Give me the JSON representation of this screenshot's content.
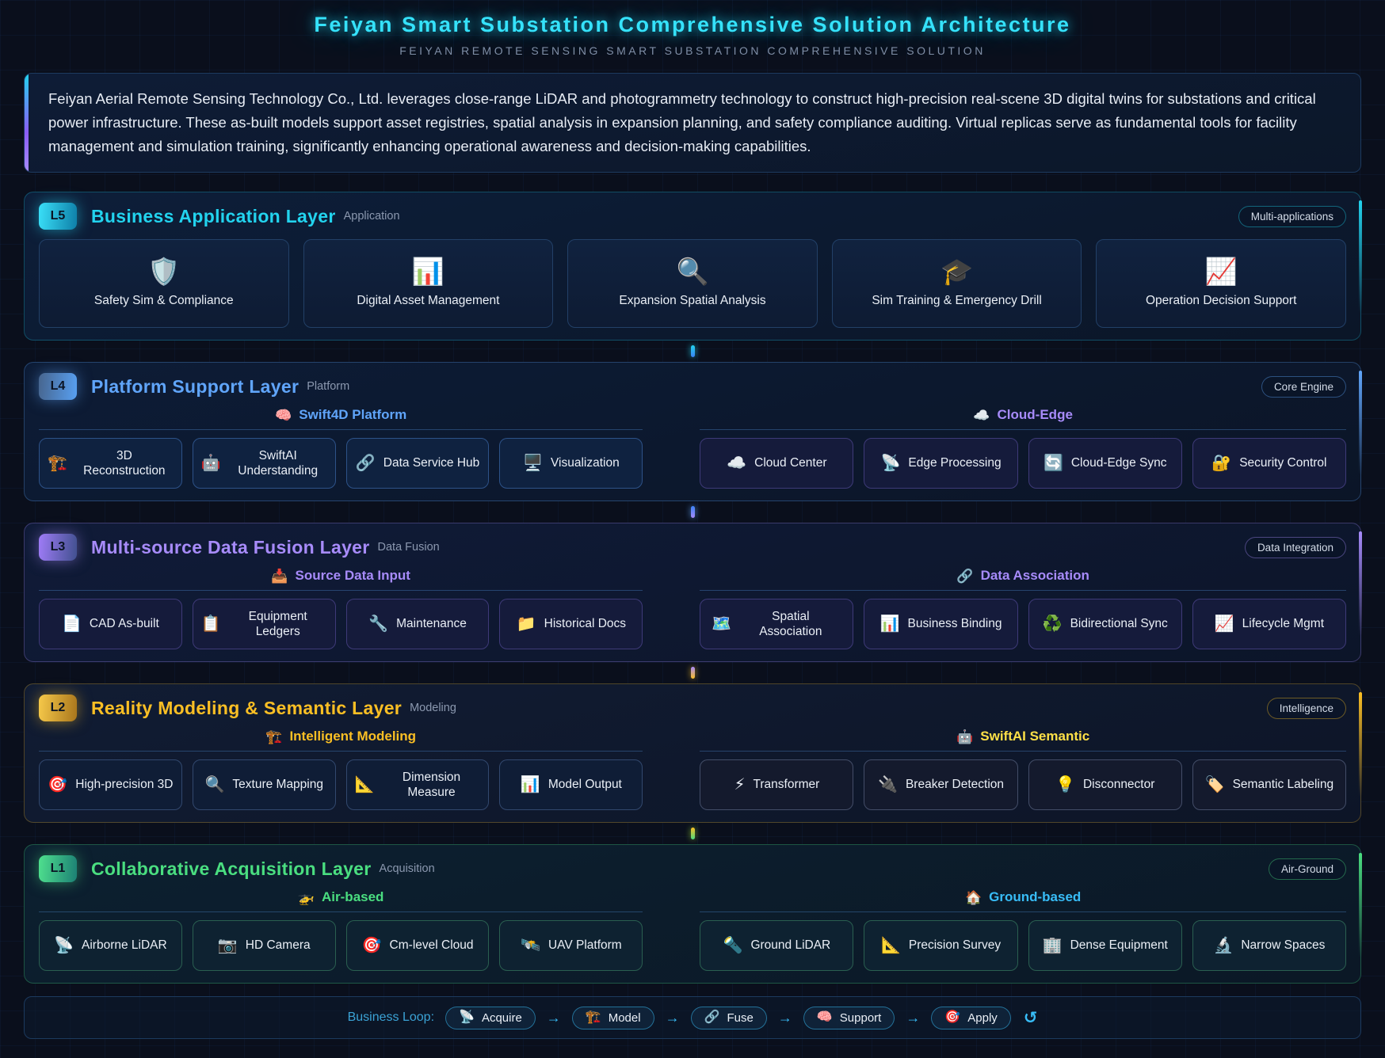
{
  "header": {
    "title": "Feiyan Smart Substation Comprehensive Solution Architecture",
    "subtitle": "FEIYAN REMOTE SENSING SMART SUBSTATION COMPREHENSIVE SOLUTION"
  },
  "intro": {
    "text": "Feiyan Aerial Remote Sensing Technology Co., Ltd. leverages close-range LiDAR and photogrammetry technology to construct high-precision real-scene 3D digital twins for substations and critical power infrastructure. These as-built models support asset registries, spatial analysis in expansion planning, and safety compliance auditing. Virtual replicas serve as fundamental tools for facility management and simulation training, significantly enhancing operational awareness and decision-making capabilities."
  },
  "colors": {
    "l5_accent": "#22d3ee",
    "l4_accent": "#60a5fa",
    "l3_accent": "#a78bfa",
    "l2_accent": "#fbbf24",
    "l1_accent": "#4ade80",
    "loop_accent": "#38bdf8"
  },
  "layers": [
    {
      "badge": "L5",
      "title": "Business Application Layer",
      "tag": "Application",
      "pill": "Multi-applications",
      "cards": [
        {
          "icon": "🛡️",
          "icon_name": "shield-icon",
          "label": "Safety Sim & Compliance"
        },
        {
          "icon": "📊",
          "icon_name": "bar-chart-icon",
          "label": "Digital Asset Management"
        },
        {
          "icon": "🔍",
          "icon_name": "magnifier-icon",
          "label": "Expansion Spatial Analysis"
        },
        {
          "icon": "🎓",
          "icon_name": "graduation-cap-icon",
          "label": "Sim Training & Emergency Drill"
        },
        {
          "icon": "📈",
          "icon_name": "chart-increasing-icon",
          "label": "Operation Decision Support"
        }
      ]
    },
    {
      "badge": "L4",
      "title": "Platform Support Layer",
      "tag": "Platform",
      "pill": "Core Engine",
      "groups": [
        {
          "icon": "🧠",
          "icon_name": "brain-icon",
          "name": "Swift4D Platform",
          "items": [
            {
              "icon": "🏗️",
              "icon_name": "crane-icon",
              "label": "3D Reconstruction"
            },
            {
              "icon": "🤖",
              "icon_name": "robot-icon",
              "label": "SwiftAI Understanding"
            },
            {
              "icon": "🔗",
              "icon_name": "link-icon",
              "label": "Data Service Hub"
            },
            {
              "icon": "🖥️",
              "icon_name": "desktop-icon",
              "label": "Visualization"
            }
          ]
        },
        {
          "icon": "☁️",
          "icon_name": "cloud-icon",
          "name": "Cloud-Edge",
          "items": [
            {
              "icon": "☁️",
              "icon_name": "cloud-icon",
              "label": "Cloud Center"
            },
            {
              "icon": "📡",
              "icon_name": "satellite-antenna-icon",
              "label": "Edge Processing"
            },
            {
              "icon": "🔄",
              "icon_name": "sync-arrows-icon",
              "label": "Cloud-Edge Sync"
            },
            {
              "icon": "🔐",
              "icon_name": "lock-icon",
              "label": "Security Control"
            }
          ]
        }
      ]
    },
    {
      "badge": "L3",
      "title": "Multi-source Data Fusion Layer",
      "tag": "Data Fusion",
      "pill": "Data Integration",
      "groups": [
        {
          "icon": "📥",
          "icon_name": "inbox-tray-icon",
          "name": "Source Data Input",
          "items": [
            {
              "icon": "📄",
              "icon_name": "document-icon",
              "label": "CAD As-built"
            },
            {
              "icon": "📋",
              "icon_name": "clipboard-icon",
              "label": "Equipment Ledgers"
            },
            {
              "icon": "🔧",
              "icon_name": "wrench-icon",
              "label": "Maintenance"
            },
            {
              "icon": "📁",
              "icon_name": "folder-icon",
              "label": "Historical Docs"
            }
          ]
        },
        {
          "icon": "🔗",
          "icon_name": "link-icon",
          "name": "Data Association",
          "items": [
            {
              "icon": "🗺️",
              "icon_name": "map-icon",
              "label": "Spatial Association"
            },
            {
              "icon": "📊",
              "icon_name": "bar-chart-icon",
              "label": "Business Binding"
            },
            {
              "icon": "♻️",
              "icon_name": "recycle-icon",
              "label": "Bidirectional Sync"
            },
            {
              "icon": "📈",
              "icon_name": "chart-increasing-icon",
              "label": "Lifecycle Mgmt"
            }
          ]
        }
      ]
    },
    {
      "badge": "L2",
      "title": "Reality Modeling & Semantic Layer",
      "tag": "Modeling",
      "pill": "Intelligence",
      "groups": [
        {
          "icon": "🏗️",
          "icon_name": "crane-icon",
          "name": "Intelligent Modeling",
          "items": [
            {
              "icon": "🎯",
              "icon_name": "target-icon",
              "label": "High-precision 3D"
            },
            {
              "icon": "🔍",
              "icon_name": "magnifier-icon",
              "label": "Texture Mapping"
            },
            {
              "icon": "📐",
              "icon_name": "triangular-ruler-icon",
              "label": "Dimension Measure"
            },
            {
              "icon": "📊",
              "icon_name": "bar-chart-icon",
              "label": "Model Output"
            }
          ]
        },
        {
          "icon": "🤖",
          "icon_name": "robot-icon",
          "name": "SwiftAI Semantic",
          "items": [
            {
              "icon": "⚡",
              "icon_name": "lightning-icon",
              "label": "Transformer"
            },
            {
              "icon": "🔌",
              "icon_name": "plug-icon",
              "label": "Breaker Detection"
            },
            {
              "icon": "💡",
              "icon_name": "bulb-icon",
              "label": "Disconnector"
            },
            {
              "icon": "🏷️",
              "icon_name": "label-tag-icon",
              "label": "Semantic Labeling"
            }
          ]
        }
      ]
    },
    {
      "badge": "L1",
      "title": "Collaborative Acquisition Layer",
      "tag": "Acquisition",
      "pill": "Air-Ground",
      "groups": [
        {
          "icon": "🚁",
          "icon_name": "helicopter-icon",
          "name": "Air-based",
          "items": [
            {
              "icon": "📡",
              "icon_name": "satellite-antenna-icon",
              "label": "Airborne LiDAR"
            },
            {
              "icon": "📷",
              "icon_name": "camera-icon",
              "label": "HD Camera"
            },
            {
              "icon": "🎯",
              "icon_name": "target-icon",
              "label": "Cm-level Cloud"
            },
            {
              "icon": "🛰️",
              "icon_name": "satellite-icon",
              "label": "UAV Platform"
            }
          ]
        },
        {
          "icon": "🏠",
          "icon_name": "house-icon",
          "name": "Ground-based",
          "items": [
            {
              "icon": "🔦",
              "icon_name": "flashlight-icon",
              "label": "Ground LiDAR"
            },
            {
              "icon": "📐",
              "icon_name": "triangular-ruler-icon",
              "label": "Precision Survey"
            },
            {
              "icon": "🏢",
              "icon_name": "office-building-icon",
              "label": "Dense Equipment"
            },
            {
              "icon": "🔬",
              "icon_name": "microscope-icon",
              "label": "Narrow Spaces"
            }
          ]
        }
      ]
    }
  ],
  "loop": {
    "label": "Business Loop:",
    "arrow": "→",
    "repeat_icon": "↺",
    "steps": [
      {
        "icon": "📡",
        "icon_name": "satellite-antenna-icon",
        "label": "Acquire"
      },
      {
        "icon": "🏗️",
        "icon_name": "crane-icon",
        "label": "Model"
      },
      {
        "icon": "🔗",
        "icon_name": "link-icon",
        "label": "Fuse"
      },
      {
        "icon": "🧠",
        "icon_name": "brain-icon",
        "label": "Support"
      },
      {
        "icon": "🎯",
        "icon_name": "target-icon",
        "label": "Apply"
      }
    ]
  }
}
